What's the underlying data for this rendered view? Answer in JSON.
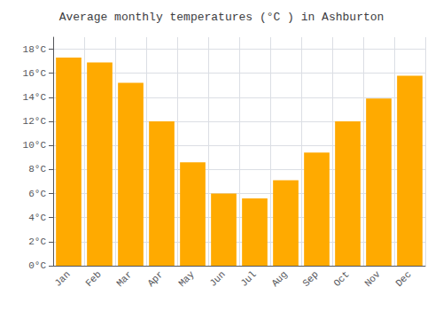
{
  "chart_data": {
    "type": "bar",
    "title": "Average monthly temperatures (°C ) in Ashburton",
    "categories": [
      "Jan",
      "Feb",
      "Mar",
      "Apr",
      "May",
      "Jun",
      "Jul",
      "Aug",
      "Sep",
      "Oct",
      "Nov",
      "Dec"
    ],
    "values": [
      17.3,
      16.9,
      15.2,
      12.0,
      8.6,
      6.0,
      5.6,
      7.1,
      9.4,
      12.0,
      13.9,
      15.8
    ],
    "color": "#FFAA00",
    "ylim": [
      0,
      19
    ],
    "yticks": [
      {
        "value": 0,
        "label": "0°C"
      },
      {
        "value": 2,
        "label": "2°C"
      },
      {
        "value": 4,
        "label": "4°C"
      },
      {
        "value": 6,
        "label": "6°C"
      },
      {
        "value": 8,
        "label": "8°C"
      },
      {
        "value": 10,
        "label": "10°C"
      },
      {
        "value": 12,
        "label": "12°C"
      },
      {
        "value": 14,
        "label": "14°C"
      },
      {
        "value": 16,
        "label": "16°C"
      },
      {
        "value": 18,
        "label": "18°C"
      }
    ],
    "grid": true
  }
}
